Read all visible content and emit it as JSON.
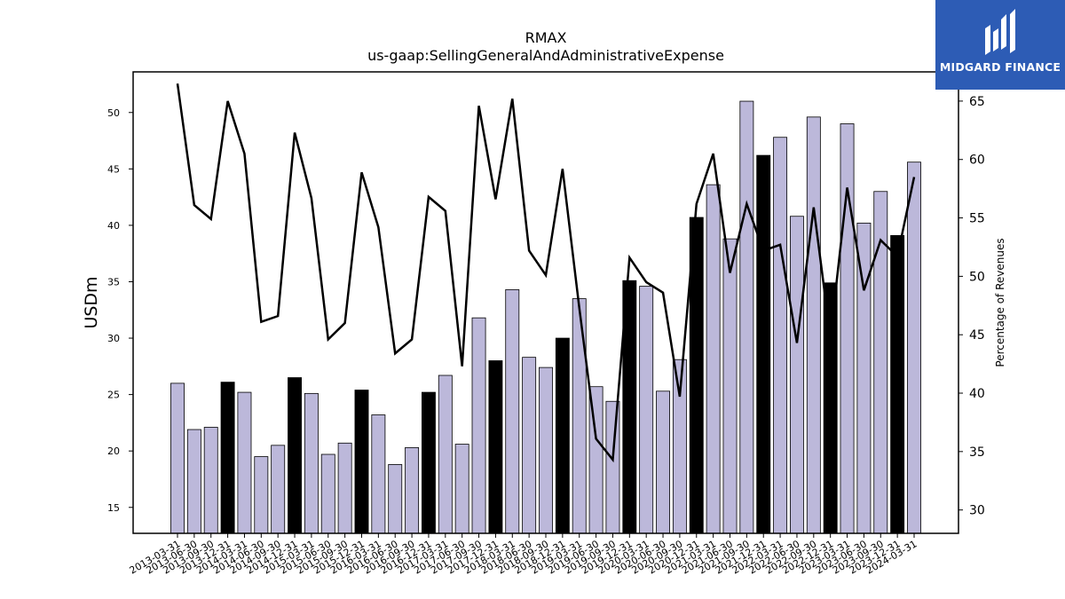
{
  "chart_data": {
    "type": "bar",
    "title": "RMAX",
    "subtitle": "us-gaap:SellingGeneralAndAdministrativeExpense",
    "ylabel": "USDm",
    "y2label": "Percentage of Revenues",
    "ylim": [
      12.7,
      53.6
    ],
    "y2lim": [
      28.0,
      67.5
    ],
    "yticks": [
      15,
      20,
      25,
      30,
      35,
      40,
      45,
      50
    ],
    "y2ticks": [
      30,
      35,
      40,
      45,
      50,
      55,
      60,
      65
    ],
    "categories": [
      "2013-03-31",
      "2013-06-30",
      "2013-09-30",
      "2013-12-31",
      "2014-03-31",
      "2014-06-30",
      "2014-09-30",
      "2014-12-31",
      "2015-03-31",
      "2015-06-30",
      "2015-09-30",
      "2015-12-31",
      "2016-03-31",
      "2016-06-30",
      "2016-09-30",
      "2016-12-31",
      "2017-03-31",
      "2017-06-30",
      "2017-09-30",
      "2017-12-31",
      "2018-03-31",
      "2018-06-30",
      "2018-09-30",
      "2018-12-31",
      "2019-03-31",
      "2019-06-30",
      "2019-09-30",
      "2019-12-31",
      "2020-03-31",
      "2020-06-30",
      "2020-09-30",
      "2020-12-31",
      "2021-03-31",
      "2021-06-30",
      "2021-09-30",
      "2021-12-31",
      "2022-03-31",
      "2022-06-30",
      "2022-09-30",
      "2022-12-31",
      "2023-03-31",
      "2023-06-30",
      "2023-09-30",
      "2023-12-31",
      "2024-03-31"
    ],
    "series": [
      {
        "type": "bar",
        "values": [
          26.0,
          21.9,
          22.1,
          26.1,
          25.2,
          19.5,
          20.5,
          26.5,
          25.1,
          19.7,
          20.7,
          25.4,
          23.2,
          18.8,
          20.3,
          25.2,
          26.7,
          20.6,
          31.8,
          28.0,
          34.3,
          28.3,
          27.4,
          30.0,
          33.5,
          25.7,
          24.4,
          35.1,
          34.6,
          25.3,
          28.1,
          40.7,
          43.6,
          38.8,
          51.0,
          46.2,
          47.8,
          40.8,
          49.6,
          34.9,
          49.0,
          40.2,
          43.0,
          39.1,
          45.6
        ]
      },
      {
        "type": "line",
        "axis": "right",
        "values": [
          66.5,
          56.1,
          54.9,
          65.0,
          60.5,
          46.1,
          46.6,
          62.3,
          56.7,
          44.6,
          46.0,
          58.9,
          54.2,
          43.4,
          44.6,
          56.8,
          55.6,
          42.3,
          64.6,
          56.6,
          65.2,
          52.2,
          50.1,
          59.2,
          47.3,
          36.1,
          34.3,
          51.6,
          49.5,
          48.6,
          39.7,
          56.2,
          60.5,
          50.3,
          56.2,
          52.2,
          52.7,
          44.3,
          55.9,
          44.8,
          57.6,
          48.8,
          53.1,
          51.7,
          58.5
        ]
      }
    ],
    "highlight_color": "#000000",
    "bar_color": "#bcb8da",
    "line_color": "#000000",
    "grid": false
  },
  "logo": {
    "text": "MIDGARD FINANCE",
    "background": "#2d5cb5"
  }
}
